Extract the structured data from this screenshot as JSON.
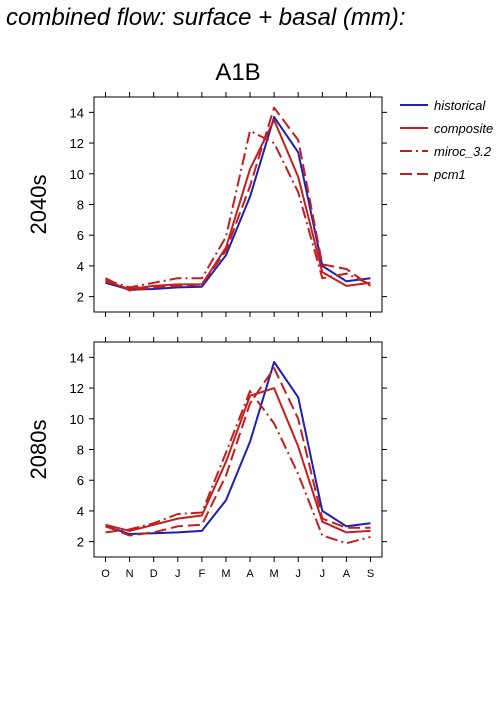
{
  "title": "combined flow: surface + basal (mm):",
  "scenario": "A1B",
  "colors": {
    "historical": "#1f1fb4",
    "model": "#c41e1e"
  },
  "legend": [
    {
      "name": "historical",
      "color": "#1f1fb4",
      "dash": "solid"
    },
    {
      "name": "composite",
      "color": "#c41e1e",
      "dash": "solid"
    },
    {
      "name": "miroc_3.2",
      "color": "#c41e1e",
      "dash": "dashdot"
    },
    {
      "name": "pcm1",
      "color": "#c41e1e",
      "dash": "dash"
    }
  ],
  "chart_data": [
    {
      "type": "line",
      "row_label": "2040s",
      "categories": [
        "O",
        "N",
        "D",
        "J",
        "F",
        "M",
        "A",
        "M",
        "J",
        "J",
        "A",
        "S"
      ],
      "ylim": [
        1,
        15
      ],
      "yticks": [
        2,
        4,
        6,
        8,
        10,
        12,
        14
      ],
      "series": [
        {
          "name": "historical",
          "values": [
            2.9,
            2.45,
            2.5,
            2.6,
            2.65,
            4.7,
            8.5,
            13.7,
            11.4,
            4.0,
            3.0,
            3.2
          ]
        },
        {
          "name": "composite",
          "values": [
            3.0,
            2.5,
            2.7,
            2.8,
            2.8,
            5.2,
            10.3,
            13.5,
            9.8,
            3.6,
            2.7,
            2.9
          ]
        },
        {
          "name": "miroc_3.2",
          "values": [
            3.1,
            2.6,
            2.9,
            3.2,
            3.2,
            5.9,
            12.8,
            12.0,
            8.8,
            3.2,
            3.5,
            2.8
          ]
        },
        {
          "name": "pcm1",
          "values": [
            3.2,
            2.4,
            2.6,
            2.7,
            2.8,
            5.0,
            9.2,
            14.3,
            12.2,
            4.1,
            3.8,
            2.7
          ]
        }
      ]
    },
    {
      "type": "line",
      "row_label": "2080s",
      "categories": [
        "O",
        "N",
        "D",
        "J",
        "F",
        "M",
        "A",
        "M",
        "J",
        "J",
        "A",
        "S"
      ],
      "ylim": [
        1,
        15
      ],
      "yticks": [
        2,
        4,
        6,
        8,
        10,
        12,
        14
      ],
      "series": [
        {
          "name": "historical",
          "values": [
            3.0,
            2.5,
            2.55,
            2.6,
            2.7,
            4.7,
            8.5,
            13.7,
            11.4,
            4.0,
            3.0,
            3.2
          ]
        },
        {
          "name": "composite",
          "values": [
            3.1,
            2.7,
            3.1,
            3.5,
            3.7,
            7.2,
            11.5,
            12.0,
            8.2,
            3.3,
            2.6,
            2.7
          ]
        },
        {
          "name": "miroc_3.2",
          "values": [
            2.6,
            2.8,
            3.2,
            3.8,
            3.9,
            7.8,
            11.8,
            9.7,
            6.4,
            2.4,
            1.9,
            2.3
          ]
        },
        {
          "name": "pcm1",
          "values": [
            3.0,
            2.4,
            2.6,
            3.0,
            3.1,
            6.3,
            11.0,
            13.3,
            10.0,
            3.5,
            2.9,
            2.9
          ]
        }
      ]
    }
  ]
}
